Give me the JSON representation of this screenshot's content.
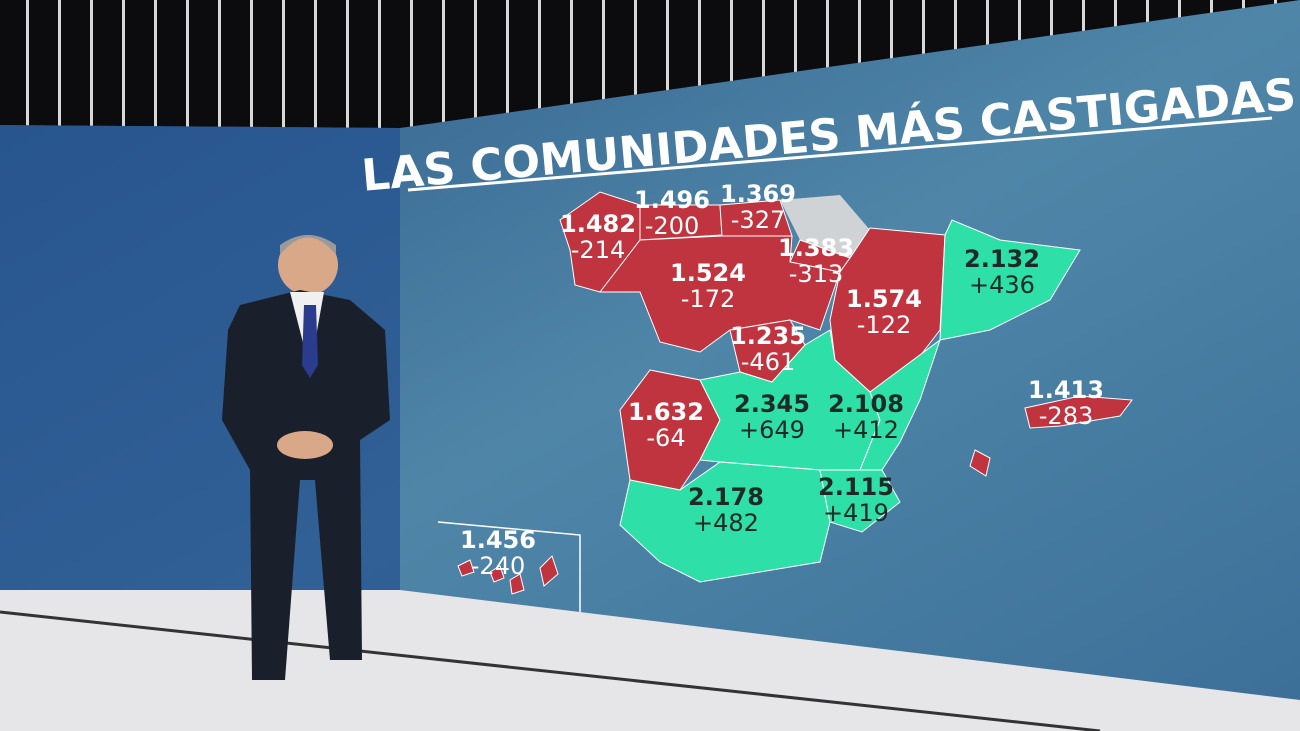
{
  "title": "LAS COMUNIDADES MÁS CASTIGADAS",
  "regions": [
    {
      "value": "1.482",
      "change": "-214",
      "color": "#c0343f"
    },
    {
      "value": "1.496",
      "change": "-200",
      "color": "#c0343f"
    },
    {
      "value": "1.369",
      "change": "-327",
      "color": "#c0343f"
    },
    {
      "value": "1.383",
      "change": "-313",
      "color": "#c0343f"
    },
    {
      "value": "1.524",
      "change": "-172",
      "color": "#c0343f"
    },
    {
      "value": "1.574",
      "change": "-122",
      "color": "#c0343f"
    },
    {
      "value": "2.132",
      "change": "+436",
      "color": "#2ee0a8"
    },
    {
      "value": "1.235",
      "change": "-461",
      "color": "#c0343f"
    },
    {
      "value": "1.632",
      "change": "-64",
      "color": "#c0343f"
    },
    {
      "value": "2.345",
      "change": "+649",
      "color": "#2ee0a8"
    },
    {
      "value": "2.108",
      "change": "+412",
      "color": "#2ee0a8"
    },
    {
      "value": "2.178",
      "change": "+482",
      "color": "#2ee0a8"
    },
    {
      "value": "2.115",
      "change": "+419",
      "color": "#2ee0a8"
    },
    {
      "value": "1.413",
      "change": "-283",
      "color": "#c0343f"
    },
    {
      "value": "1.456",
      "change": "-240",
      "color": "#c0343f"
    }
  ]
}
